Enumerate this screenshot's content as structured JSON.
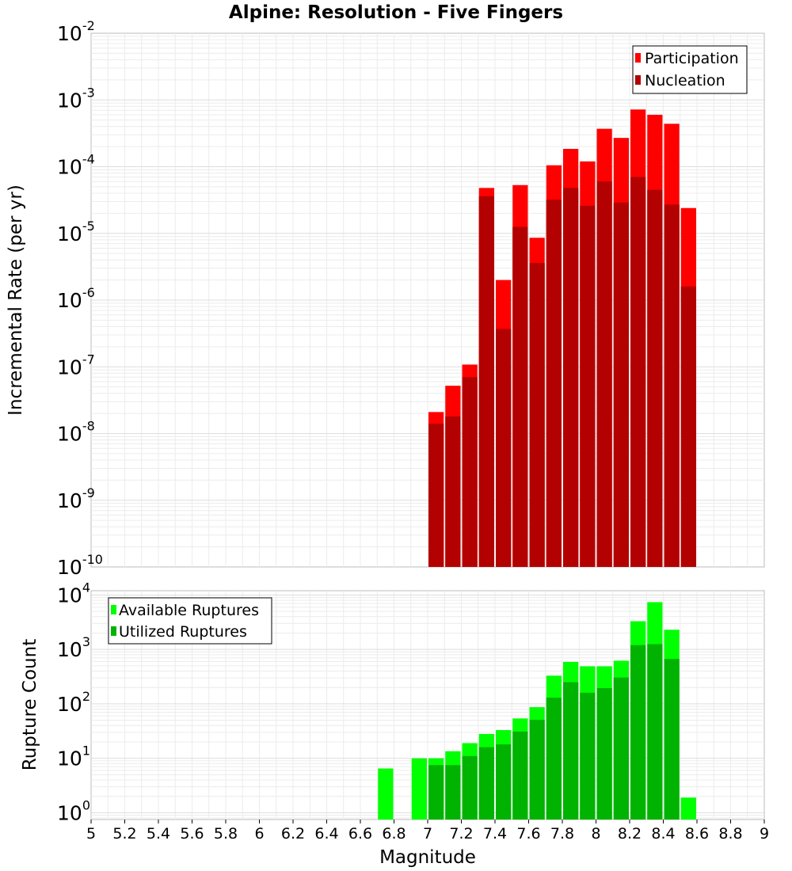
{
  "title": "Alpine: Resolution - Five Fingers",
  "chart_data": [
    {
      "type": "bar",
      "yscale": "log",
      "ylabel": "Incremental Rate (per yr)",
      "ylim": [
        1e-10,
        0.01
      ],
      "xlim": [
        5,
        9
      ],
      "bar_width": 0.1,
      "y_ticks": [
        {
          "base": "10",
          "exp": "-10"
        },
        {
          "base": "10",
          "exp": "-9"
        },
        {
          "base": "10",
          "exp": "-8"
        },
        {
          "base": "10",
          "exp": "-7"
        },
        {
          "base": "10",
          "exp": "-6"
        },
        {
          "base": "10",
          "exp": "-5"
        },
        {
          "base": "10",
          "exp": "-4"
        },
        {
          "base": "10",
          "exp": "-3"
        },
        {
          "base": "10",
          "exp": "-2"
        }
      ],
      "legend": {
        "position": "top-right"
      },
      "series": [
        {
          "name": "Participation",
          "color": "#ff0000",
          "points": [
            [
              7.05,
              2.1e-08
            ],
            [
              7.15,
              5.2e-08
            ],
            [
              7.25,
              1.08e-07
            ],
            [
              7.35,
              4.8e-05
            ],
            [
              7.45,
              2e-06
            ],
            [
              7.55,
              5.3e-05
            ],
            [
              7.65,
              8.6e-06
            ],
            [
              7.75,
              0.000105
            ],
            [
              7.85,
              0.000185
            ],
            [
              7.95,
              0.00012
            ],
            [
              8.05,
              0.00037
            ],
            [
              8.15,
              0.00027
            ],
            [
              8.25,
              0.00072
            ],
            [
              8.35,
              0.0006
            ],
            [
              8.45,
              0.00044
            ],
            [
              8.55,
              2.4e-05
            ]
          ]
        },
        {
          "name": "Nucleation",
          "color": "#b30000",
          "points": [
            [
              7.05,
              1.4e-08
            ],
            [
              7.15,
              1.8e-08
            ],
            [
              7.25,
              7e-08
            ],
            [
              7.35,
              3.6e-05
            ],
            [
              7.45,
              3.7e-07
            ],
            [
              7.55,
              1.25e-05
            ],
            [
              7.65,
              3.6e-06
            ],
            [
              7.75,
              3.2e-05
            ],
            [
              7.85,
              4.8e-05
            ],
            [
              7.95,
              2.6e-05
            ],
            [
              8.05,
              6e-05
            ],
            [
              8.15,
              2.9e-05
            ],
            [
              8.25,
              7e-05
            ],
            [
              8.35,
              4.5e-05
            ],
            [
              8.45,
              2.7e-05
            ],
            [
              8.55,
              1.6e-06
            ]
          ]
        }
      ]
    },
    {
      "type": "bar",
      "yscale": "log",
      "xlabel": "Magnitude",
      "ylabel": "Rupture Count",
      "ylim": [
        0.75,
        12000
      ],
      "xlim": [
        5,
        9
      ],
      "bar_width": 0.1,
      "x_ticks": [
        "5",
        "5.2",
        "5.4",
        "5.6",
        "5.8",
        "6",
        "6.2",
        "6.4",
        "6.6",
        "6.8",
        "7",
        "7.2",
        "7.4",
        "7.6",
        "7.8",
        "8",
        "8.2",
        "8.4",
        "8.6",
        "8.8",
        "9"
      ],
      "y_ticks": [
        {
          "base": "10",
          "exp": "0"
        },
        {
          "base": "10",
          "exp": "1"
        },
        {
          "base": "10",
          "exp": "2"
        },
        {
          "base": "10",
          "exp": "3"
        },
        {
          "base": "10",
          "exp": "4"
        }
      ],
      "legend": {
        "position": "top-left"
      },
      "series": [
        {
          "name": "Available Ruptures",
          "color": "#00ff00",
          "points": [
            [
              6.75,
              6.5
            ],
            [
              6.95,
              10
            ],
            [
              7.05,
              10
            ],
            [
              7.15,
              13.5
            ],
            [
              7.25,
              19
            ],
            [
              7.35,
              28
            ],
            [
              7.45,
              33
            ],
            [
              7.55,
              54
            ],
            [
              7.65,
              87
            ],
            [
              7.75,
              330
            ],
            [
              7.85,
              590
            ],
            [
              7.95,
              490
            ],
            [
              8.05,
              490
            ],
            [
              8.15,
              620
            ],
            [
              8.25,
              3300
            ],
            [
              8.35,
              7400
            ],
            [
              8.45,
              2300
            ],
            [
              8.55,
              1.9
            ]
          ]
        },
        {
          "name": "Utilized Ruptures",
          "color": "#00b300",
          "points": [
            [
              7.05,
              7.5
            ],
            [
              7.15,
              7.5
            ],
            [
              7.25,
              11
            ],
            [
              7.35,
              16
            ],
            [
              7.45,
              18
            ],
            [
              7.55,
              31
            ],
            [
              7.65,
              51
            ],
            [
              7.75,
              130
            ],
            [
              7.85,
              250
            ],
            [
              7.95,
              160
            ],
            [
              8.05,
              195
            ],
            [
              8.15,
              305
            ],
            [
              8.25,
              1200
            ],
            [
              8.35,
              1250
            ],
            [
              8.45,
              670
            ]
          ]
        }
      ]
    }
  ]
}
